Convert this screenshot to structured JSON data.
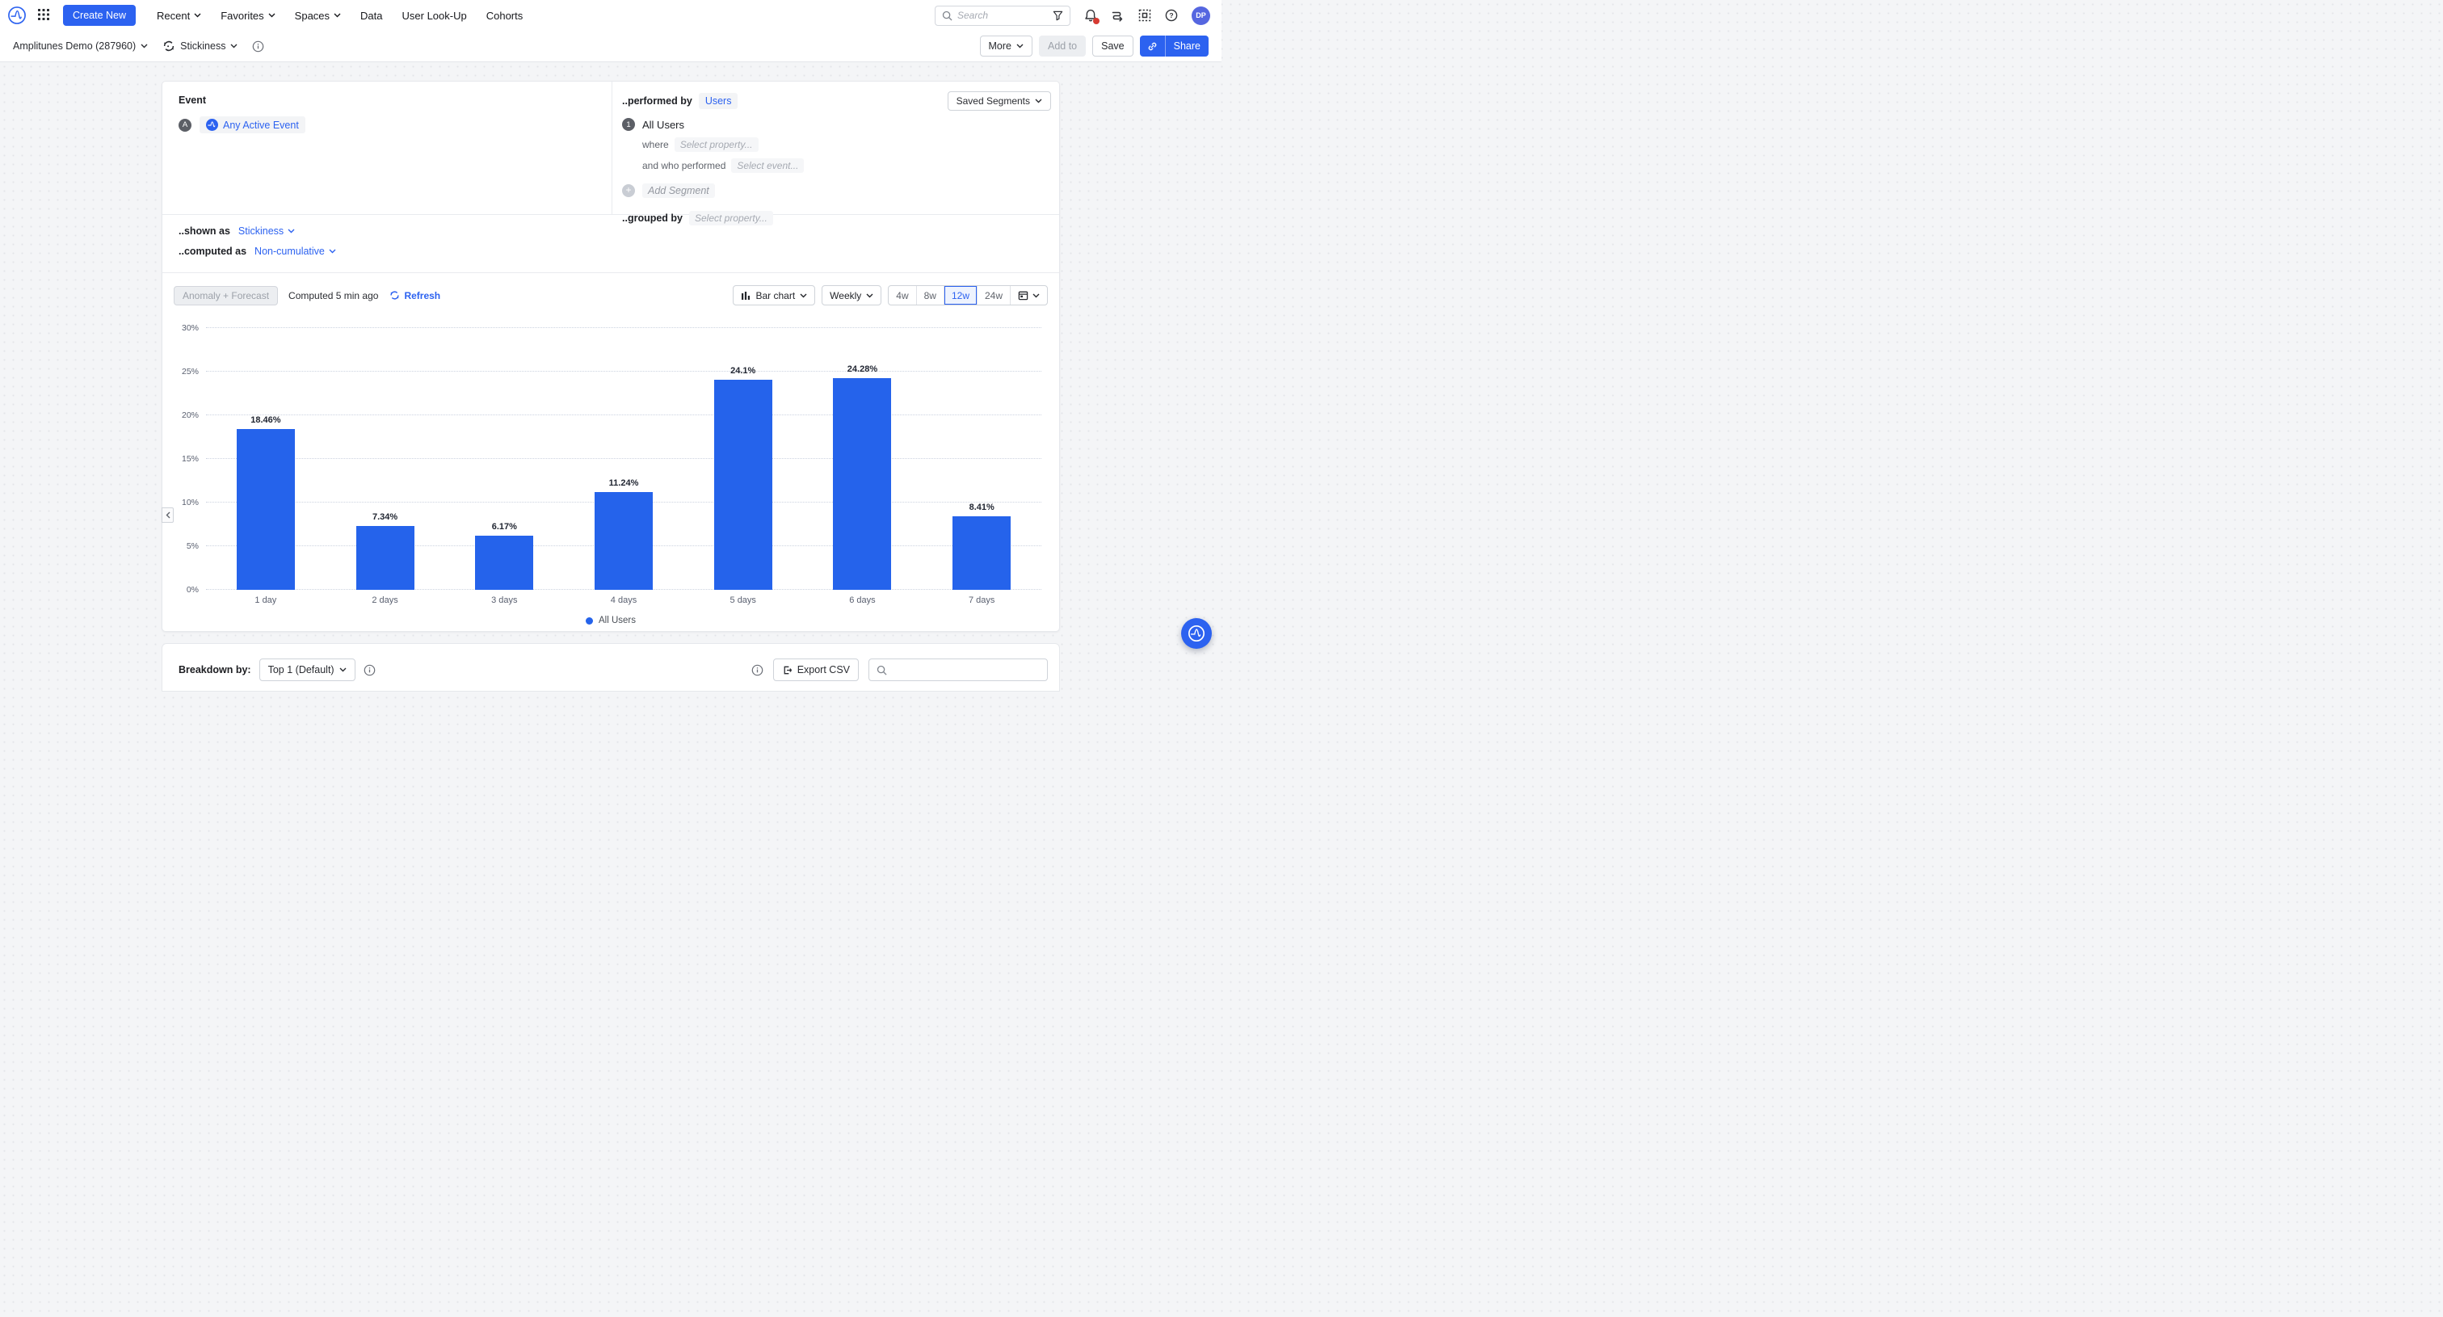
{
  "colors": {
    "brand": "#2c62f0",
    "bar": "#2563eb",
    "page-bg": "#f4f5f7",
    "notification": "#d63a32",
    "avatar-bg": "#5566e0"
  },
  "nav": {
    "create_new": "Create New",
    "items": [
      {
        "label": "Recent"
      },
      {
        "label": "Favorites"
      },
      {
        "label": "Spaces"
      },
      {
        "label": "Data"
      },
      {
        "label": "User Look-Up"
      },
      {
        "label": "Cohorts"
      }
    ],
    "search_placeholder": "Search",
    "avatar": "DP"
  },
  "header": {
    "project": "Amplitunes Demo (287960)",
    "chart_type": "Stickiness",
    "more": "More",
    "add_to": "Add to",
    "save": "Save",
    "share": "Share"
  },
  "builder": {
    "event_label": "Event",
    "event_badge": "A",
    "event_name": "Any Active Event",
    "performed_by_label": "..performed by",
    "performed_by_value": "Users",
    "saved_segments": "Saved Segments",
    "segment_badge": "1",
    "segment_name": "All Users",
    "where_label": "where",
    "where_placeholder": "Select property...",
    "and_who_label": "and who performed",
    "and_who_placeholder": "Select event...",
    "add_segment": "Add Segment",
    "grouped_by_label": "..grouped by",
    "grouped_by_placeholder": "Select property...",
    "shown_as_label": "..shown as",
    "shown_as_value": "Stickiness",
    "computed_as_label": "..computed as",
    "computed_as_value": "Non-cumulative"
  },
  "toolbar": {
    "anomaly": "Anomaly + Forecast",
    "computed": "Computed 5 min ago",
    "refresh": "Refresh",
    "chart_type": "Bar chart",
    "interval": "Weekly",
    "ranges": [
      "4w",
      "8w",
      "12w",
      "24w"
    ],
    "selected_range": "12w"
  },
  "chart_data": {
    "type": "bar",
    "title": "",
    "xlabel": "",
    "ylabel": "",
    "categories": [
      "1 day",
      "2 days",
      "3 days",
      "4 days",
      "5 days",
      "6 days",
      "7 days"
    ],
    "series": [
      {
        "name": "All Users",
        "values": [
          18.46,
          7.34,
          6.17,
          11.24,
          24.1,
          24.28,
          8.41
        ],
        "value_labels": [
          "18.46%",
          "7.34%",
          "6.17%",
          "11.24%",
          "24.1%",
          "24.28%",
          "8.41%"
        ]
      }
    ],
    "ylim": [
      0,
      30
    ],
    "yticks": [
      "0%",
      "5%",
      "10%",
      "15%",
      "20%",
      "25%",
      "30%"
    ],
    "grid": true,
    "legend_position": "bottom"
  },
  "breakdown": {
    "label": "Breakdown by:",
    "selector": "Top 1 (Default)",
    "export": "Export CSV"
  }
}
